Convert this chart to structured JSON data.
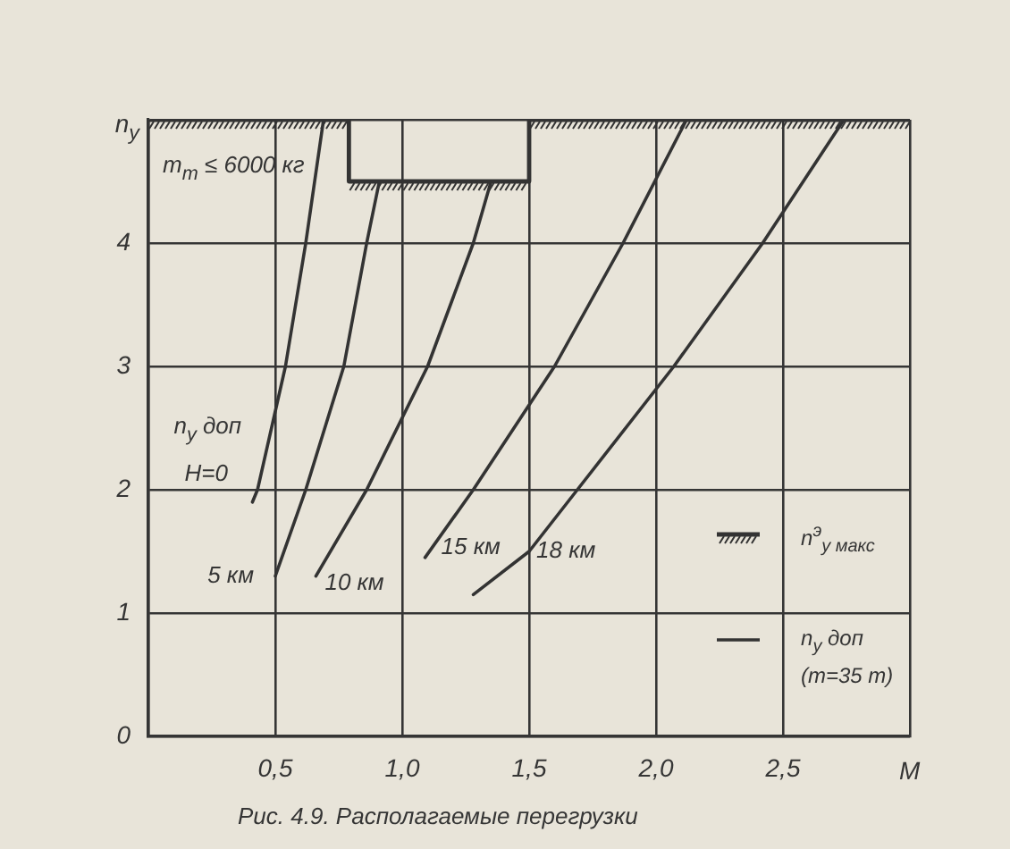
{
  "chart_data": {
    "type": "line",
    "xlabel": "M",
    "ylabel": "n$_{y}$",
    "xlim": [
      0,
      3
    ],
    "ylim": [
      0,
      5
    ],
    "xticks": [
      {
        "value": 0,
        "label": null
      },
      {
        "value": 0.5,
        "label": "0,5"
      },
      {
        "value": 1,
        "label": "1,0"
      },
      {
        "value": 1.5,
        "label": "1,5"
      },
      {
        "value": 2,
        "label": "2,0"
      },
      {
        "value": 2.5,
        "label": "2,5"
      },
      {
        "value": 3,
        "label": null
      }
    ],
    "yticks": [
      0,
      1,
      2,
      3,
      4,
      {
        "value": 5,
        "label": null
      }
    ],
    "grid": true,
    "legend": "bottom right",
    "marker": "none",
    "series": [
      {
        "name": "n$^{э}$$_{y макс}$",
        "type": "step",
        "color": "#333333",
        "x": [
          0,
          0.79,
          1.5,
          3
        ],
        "values": [
          5,
          4.5,
          5,
          5
        ]
      },
      {
        "name": "n$_{y}$ доп (m=35 т)",
        "color": "#333333",
        "x": [
          0.41,
          0.43,
          0.54,
          0.62,
          0.69,
          null,
          0.5,
          0.62,
          0.77,
          0.86,
          0.91,
          null,
          0.66,
          0.86,
          1.1,
          1.28,
          1.35,
          null,
          1.09,
          1.28,
          1.6,
          1.87,
          2.12,
          null,
          1.28,
          1.5,
          1.69,
          2.07,
          2.42,
          2.74
        ],
        "values": [
          1.9,
          2,
          3,
          4,
          5,
          null,
          1.3,
          2,
          3,
          4,
          4.5,
          null,
          1.3,
          2,
          3,
          4,
          4.5,
          null,
          1.45,
          2,
          3,
          4,
          5,
          null,
          1.15,
          1.5,
          2,
          3,
          4,
          5
        ]
      }
    ],
    "annotations": [
      "m$_{т}$ ≤ 6000 кг",
      {
        "text": "n$_{y}$ доп",
        "x": 0.41,
        "y": 1.9
      },
      {
        "text": "H=0",
        "x": 0.41,
        "y": 1.9
      },
      {
        "text": "5 км",
        "x": 0.5,
        "y": 1.3
      },
      {
        "text": "10 км",
        "x": 0.66,
        "y": 1.3
      },
      {
        "text": "15 км",
        "x": 1.09,
        "y": 1.45
      },
      {
        "text": "18 км",
        "x": 1.5,
        "y": 1.5
      },
      "Рис. 4.9. Располагаемые перегрузки"
    ]
  }
}
